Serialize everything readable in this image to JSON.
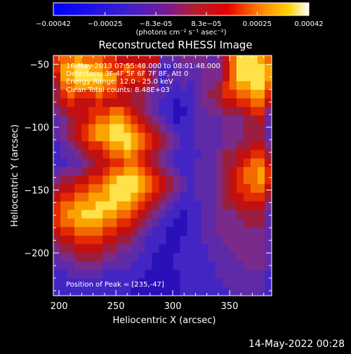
{
  "chart_data": {
    "type": "heatmap",
    "title": "Reconstructed RHESSI Image",
    "xlabel": "Heliocentric X (arcsec)",
    "ylabel": "Heliocentric Y (arcsec)",
    "xlim": [
      195,
      387
    ],
    "ylim": [
      -234,
      -43
    ],
    "xticks": [
      200,
      250,
      300,
      350
    ],
    "yticks": [
      -50,
      -100,
      -150,
      -200
    ],
    "annotations": [
      "16-May-2013 07:55:48.000 to 08:01:48.000",
      "Detectors: 3F 4F 5F 6F 7F 8F, Att 0",
      "Energy Range: 12.0 - 25.0 keV",
      "Clean    Total counts: 8.48E+03"
    ],
    "peak_label": "Position of Peak = [235,-47]",
    "peak_position": [
      235,
      -47
    ],
    "colorbar": {
      "min": -0.00042,
      "max": 0.00042,
      "tick_labels": [
        "-0.00042",
        "-0.00025",
        "-8.3e-05",
        "8.3e-05",
        "0.00025",
        "0.00042"
      ],
      "unit_label": "(photons cm⁻² s⁻¹ asec⁻²)"
    },
    "intensity_grid_note": "approximate relative intensity 0-9 per cell, rows top to bottom",
    "intensity_grid": [
      "6778777665555552223333235799987",
      "6889988766766431122223335799998",
      "5889999886666531222223335799998",
      "4778888776555431212123346788997",
      "4676667665544322111123446677886",
      "4565556555544321101123345566775",
      "3455566677654321100122334445663",
      "2345567788765432101122223334452",
      "2345678899876543211122223334442",
      "2345678899987654321122223334442",
      "1234566788987654321122223344553",
      "1223455677876543211112234455664",
      "1122345566776543211122234456775",
      "2333455677887654321122234567786",
      "3445566789998765432122234567786",
      "4556677899998765432122234566775",
      "5667788899987654321122234556664",
      "6778889998876543211112234455553",
      "6788999887765432110112233344442",
      "6778888776654321100112233334442",
      "5667777665543211000112233333332",
      "4556666554432111001112223333332",
      "3445555443322110001111222333332",
      "2334444332221100011111222233332",
      "2223333222211100011111122223332",
      "1122222111111000001111122222221",
      "1111111111110000001111112222221",
      "1111111111100000001111111222221"
    ]
  },
  "timestamp": "14-May-2022 00:28"
}
